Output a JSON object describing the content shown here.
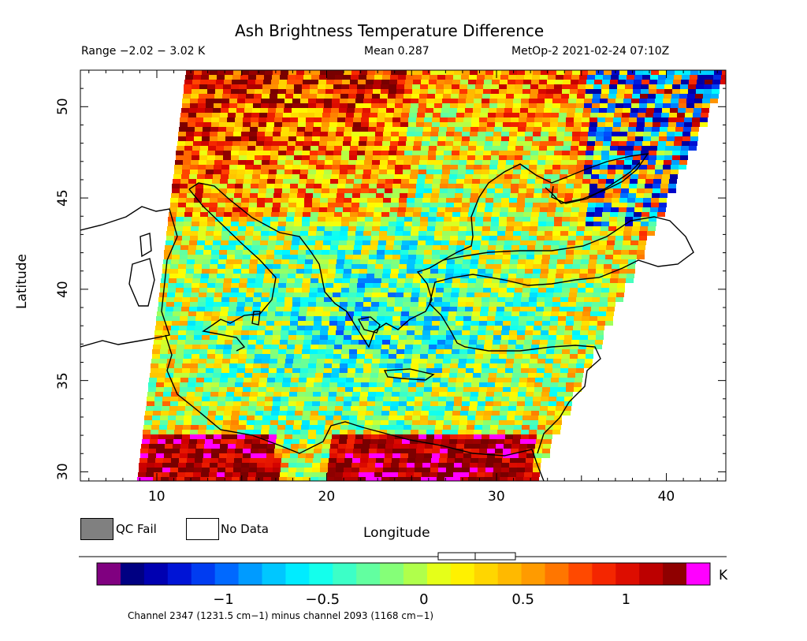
{
  "header": {
    "title": "Ash Brightness Temperature Difference",
    "range": "Range −2.02 − 3.02 K",
    "mean": "Mean 0.287",
    "satellite": "MetOp-2 2021-02-24 07:10Z"
  },
  "axes": {
    "xlabel": "Longitude",
    "ylabel": "Latitude",
    "xticks": [
      "10",
      "20",
      "30",
      "40"
    ],
    "yticks": [
      "30",
      "35",
      "40",
      "45",
      "50"
    ],
    "xrange": [
      5.5,
      43.5
    ],
    "yrange": [
      29.5,
      52
    ]
  },
  "legend": {
    "qc_fail": "QC Fail",
    "no_data": "No Data",
    "qc_fail_color": "#808080",
    "no_data_color": "#ffffff"
  },
  "colorbar": {
    "unit": "K",
    "ticks": [
      "−1",
      "−0.5",
      "0",
      "0.5",
      "1"
    ],
    "range": [
      -1.5,
      1.3
    ],
    "colors": [
      "#00006a",
      "#0000c8",
      "#0050ff",
      "#00b4ff",
      "#00ffff",
      "#50ffb4",
      "#96ff64",
      "#ffff00",
      "#ffc800",
      "#ff8c00",
      "#ff3200",
      "#d20000",
      "#780000"
    ],
    "below_color": "#800080",
    "above_color": "#ff00ff",
    "caption": "Channel 2347 (1231.5 cm−1) minus channel 2093 (1168 cm−1)"
  }
}
